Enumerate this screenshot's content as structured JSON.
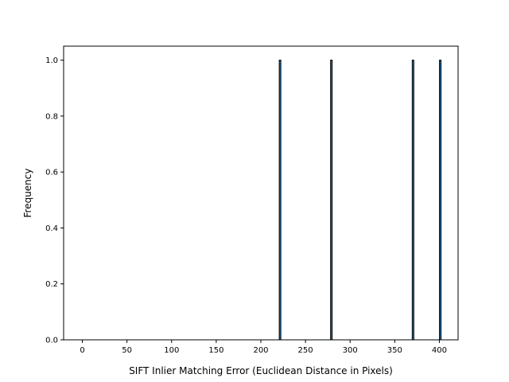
{
  "chart_data": {
    "type": "bar",
    "title": "",
    "xlabel": "SIFT Inlier Matching Error (Euclidean Distance in Pixels)",
    "ylabel": "Frequency",
    "xlim": [
      -21,
      421
    ],
    "ylim": [
      0.0,
      1.05
    ],
    "x_ticks": [
      0,
      50,
      100,
      150,
      200,
      250,
      300,
      350,
      400
    ],
    "y_ticks": [
      0.0,
      0.2,
      0.4,
      0.6,
      0.8,
      1.0
    ],
    "x_tick_labels": [
      "0",
      "50",
      "100",
      "150",
      "200",
      "250",
      "300",
      "350",
      "400"
    ],
    "y_tick_labels": [
      "0.0",
      "0.2",
      "0.4",
      "0.6",
      "0.8",
      "1.0"
    ],
    "bars": [
      {
        "x": 221.5,
        "value": 1
      },
      {
        "x": 279.0,
        "value": 1
      },
      {
        "x": 370.5,
        "value": 1
      },
      {
        "x": 401.0,
        "value": 1
      }
    ],
    "bar_color": "#1f77b4",
    "edge_color": "#000000",
    "grid": false
  }
}
